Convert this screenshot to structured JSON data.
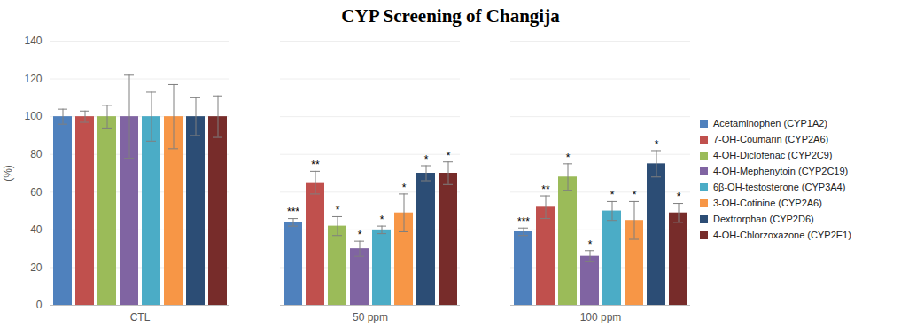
{
  "chart_data": {
    "type": "bar",
    "title": "CYP Screening of Changija",
    "y_label": "(%)",
    "categories": [
      "CTL",
      "50 ppm",
      "100 ppm"
    ],
    "ylim": [
      0,
      140
    ],
    "yticks": [
      0,
      20,
      40,
      60,
      80,
      100,
      120,
      140
    ],
    "grid": true,
    "legend": "right",
    "series": [
      {
        "name": "Acetaminophen (CYP1A2)",
        "color": "#4f81bd",
        "values": [
          100,
          44,
          39
        ],
        "error": [
          4,
          2,
          2
        ],
        "significance": [
          null,
          "***",
          "***"
        ]
      },
      {
        "name": "7-OH-Coumarin (CYP2A6)",
        "color": "#c0504d",
        "values": [
          100,
          65,
          52
        ],
        "error": [
          3,
          6,
          6
        ],
        "significance": [
          null,
          "**",
          "**"
        ]
      },
      {
        "name": "4-OH-Diclofenac (CYP2C9)",
        "color": "#9bbb59",
        "values": [
          100,
          42,
          68
        ],
        "error": [
          6,
          5,
          7
        ],
        "significance": [
          null,
          "*",
          "*"
        ]
      },
      {
        "name": "4-OH-Mephenytoin (CYP2C19)",
        "color": "#8064a2",
        "values": [
          100,
          30,
          26
        ],
        "error": [
          22,
          4,
          3
        ],
        "significance": [
          null,
          "*",
          "*"
        ]
      },
      {
        "name": "6β-OH-testosterone (CYP3A4)",
        "color": "#4bacc6",
        "values": [
          100,
          40,
          50
        ],
        "error": [
          13,
          2,
          5
        ],
        "significance": [
          null,
          "*",
          "*"
        ]
      },
      {
        "name": "3-OH-Cotinine (CYP2A6)",
        "color": "#f79646",
        "values": [
          100,
          49,
          45
        ],
        "error": [
          17,
          10,
          10
        ],
        "significance": [
          null,
          "*",
          "*"
        ]
      },
      {
        "name": "Dextrorphan (CYP2D6)",
        "color": "#2c4d75",
        "values": [
          100,
          70,
          75
        ],
        "error": [
          10,
          4,
          7
        ],
        "significance": [
          null,
          "*",
          "*"
        ]
      },
      {
        "name": "4-OH-Chlorzoxazone (CYP2E1)",
        "color": "#772c2a",
        "values": [
          100,
          70,
          49
        ],
        "error": [
          11,
          6,
          5
        ],
        "significance": [
          null,
          "*",
          "*"
        ]
      }
    ]
  }
}
